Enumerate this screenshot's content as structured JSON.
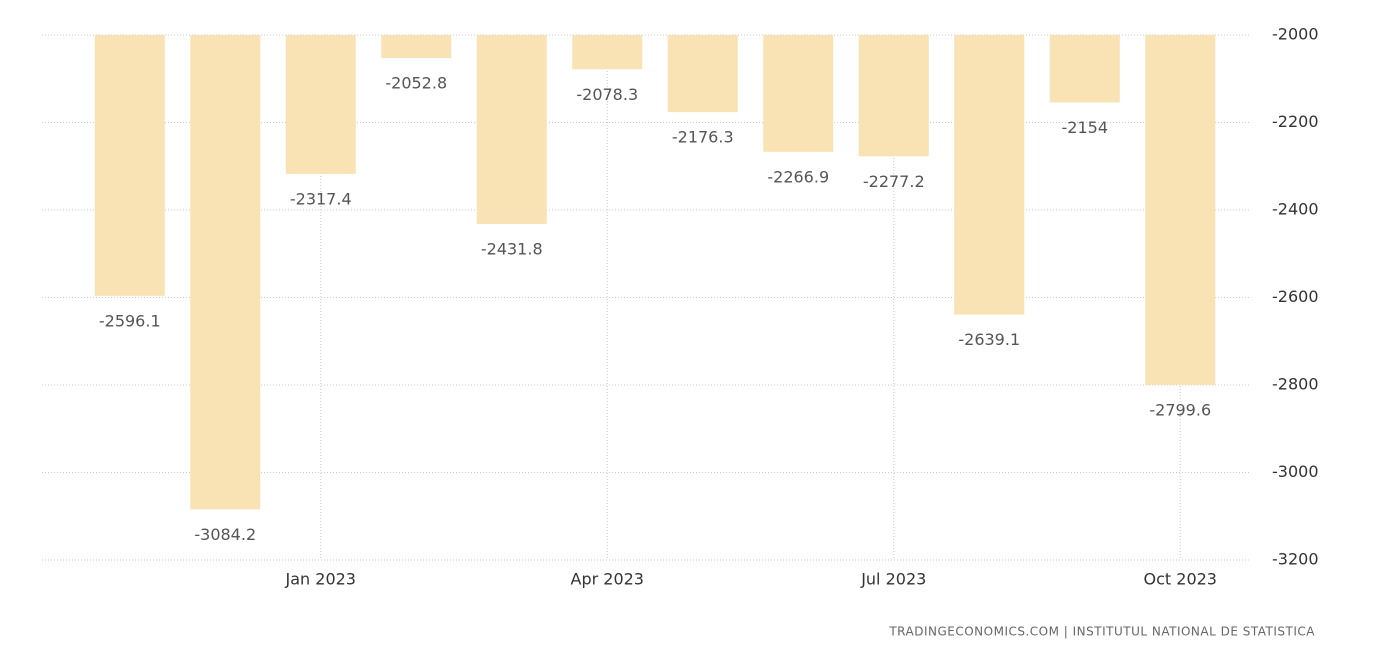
{
  "chart_data": {
    "type": "bar",
    "categories": [
      null,
      null,
      "Jan 2023",
      null,
      null,
      "Apr 2023",
      null,
      null,
      "Jul 2023",
      null,
      null,
      "Oct 2023"
    ],
    "values": [
      -2596.1,
      -3084.2,
      -2317.4,
      -2052.8,
      -2431.8,
      -2078.3,
      -2176.3,
      -2266.9,
      -2277.2,
      -2639.1,
      -2154,
      -2799.6
    ],
    "color": "#f9e2b3",
    "ylim": [
      -3200,
      -2000
    ],
    "yticks": [
      -2000,
      -2200,
      -2400,
      -2600,
      -2800,
      -3000,
      -3200
    ],
    "grid": true,
    "source": "TRADINGECONOMICS.COM | INSTITUTUL NATIONAL DE STATISTICA"
  }
}
